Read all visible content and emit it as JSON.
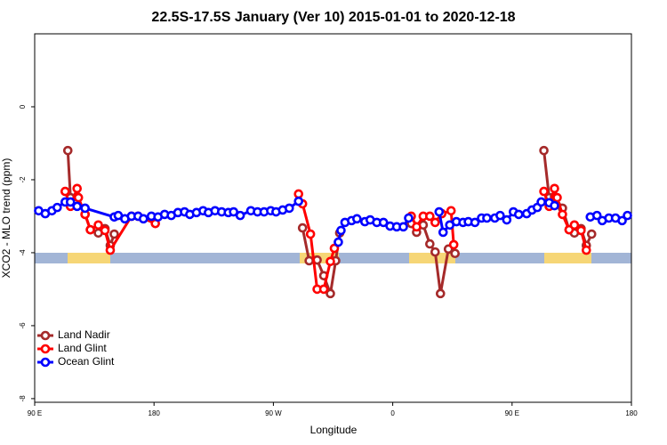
{
  "chart_data": {
    "type": "line",
    "title": "22.5S-17.5S January (Ver 10)   2015-01-01 to 2020-12-18",
    "x_label": "Longitude",
    "y_label": "XCO2 - MLO trend (ppm)",
    "xlim": [
      90,
      540
    ],
    "ylim": [
      -8.1,
      2
    ],
    "xticks": [
      {
        "value": 90,
        "label": "90 E"
      },
      {
        "value": 180,
        "label": "180"
      },
      {
        "value": 270,
        "label": "90 W"
      },
      {
        "value": 360,
        "label": "0"
      },
      {
        "value": 450,
        "label": "90 E"
      },
      {
        "value": 540,
        "label": "180"
      }
    ],
    "yticks": [
      0,
      -2,
      -4,
      -6,
      -8
    ],
    "legend": "bottomleft",
    "series": [
      {
        "name": "Land Nadir",
        "color": "#a52a2a",
        "x": [
          115,
          117,
          122,
          128,
          132,
          138,
          143,
          147,
          150,
          null,
          292,
          297,
          303,
          308,
          313,
          317,
          320,
          null,
          374,
          378,
          383,
          388,
          392,
          396,
          402,
          407,
          null,
          474,
          478,
          482,
          488,
          493,
          497,
          502,
          506,
          510
        ],
        "values": [
          -1.2,
          -2.49,
          -2.46,
          -2.95,
          -3.37,
          -3.46,
          -3.34,
          -3.8,
          -3.49,
          null,
          -3.32,
          -4.22,
          -4.2,
          -4.63,
          -5.12,
          -4.22,
          -3.46,
          null,
          -3.2,
          -3.44,
          -3.24,
          -3.76,
          -3.98,
          -5.12,
          -3.9,
          -4.02,
          null,
          -1.2,
          -2.49,
          -2.46,
          -2.78,
          -3.37,
          -3.46,
          -3.34,
          -3.8,
          -3.49
        ]
      },
      {
        "name": "Land Glint",
        "color": "#ff0000",
        "x": [
          113,
          117,
          122,
          123,
          128,
          132,
          138,
          143,
          147,
          163,
          168,
          181,
          null,
          289,
          292,
          298,
          303,
          308,
          313,
          316,
          null,
          374,
          378,
          383,
          388,
          392,
          397,
          404,
          406,
          null,
          474,
          478,
          482,
          484,
          488,
          493,
          497,
          502,
          506
        ],
        "values": [
          -2.32,
          -2.73,
          -2.24,
          -2.49,
          -2.95,
          -3.37,
          -3.24,
          -3.39,
          -3.93,
          -3.0,
          -3.0,
          -3.2,
          null,
          -2.39,
          -2.66,
          -3.49,
          -5.0,
          -5.0,
          -4.24,
          -3.88,
          null,
          -3.0,
          -3.29,
          -3.0,
          -3.0,
          -3.17,
          -2.93,
          -2.85,
          -3.78,
          null,
          -2.32,
          -2.73,
          -2.24,
          -2.49,
          -2.95,
          -3.37,
          -3.24,
          -3.39,
          -3.93
        ]
      },
      {
        "name": "Ocean Glint",
        "color": "#0000ff",
        "x": [
          93,
          98,
          103,
          107,
          113,
          117,
          122,
          128,
          150,
          153,
          158,
          163,
          168,
          172,
          178,
          183,
          188,
          193,
          198,
          203,
          207,
          212,
          217,
          221,
          226,
          231,
          236,
          240,
          245,
          253,
          258,
          263,
          268,
          272,
          277,
          282,
          289,
          null,
          319,
          321,
          324,
          329,
          333,
          339,
          343,
          348,
          353,
          358,
          363,
          368,
          372,
          null,
          395,
          398,
          403,
          408,
          413,
          417,
          422,
          427,
          431,
          437,
          441,
          446,
          451,
          455,
          461,
          465,
          469,
          472,
          478,
          482,
          null,
          509,
          514,
          518,
          523,
          528,
          533,
          537
        ],
        "values": [
          -2.85,
          -2.93,
          -2.85,
          -2.76,
          -2.61,
          -2.61,
          -2.73,
          -2.78,
          -3.02,
          -2.98,
          -3.07,
          -3.0,
          -3.0,
          -3.07,
          -3.0,
          -3.02,
          -2.95,
          -2.98,
          -2.9,
          -2.88,
          -2.95,
          -2.9,
          -2.85,
          -2.9,
          -2.85,
          -2.88,
          -2.9,
          -2.88,
          -2.98,
          -2.85,
          -2.88,
          -2.88,
          -2.85,
          -2.88,
          -2.83,
          -2.78,
          -2.59,
          null,
          -3.71,
          -3.39,
          -3.17,
          -3.12,
          -3.07,
          -3.15,
          -3.1,
          -3.17,
          -3.17,
          -3.27,
          -3.29,
          -3.29,
          -3.05,
          null,
          -2.88,
          -3.44,
          -3.24,
          -3.15,
          -3.17,
          -3.15,
          -3.17,
          -3.05,
          -3.05,
          -3.05,
          -2.98,
          -3.1,
          -2.88,
          -2.95,
          -2.93,
          -2.83,
          -2.76,
          -2.61,
          -2.63,
          -2.71,
          null,
          -3.02,
          -2.98,
          -3.12,
          -3.05,
          -3.05,
          -3.12,
          -2.98
        ]
      }
    ]
  }
}
